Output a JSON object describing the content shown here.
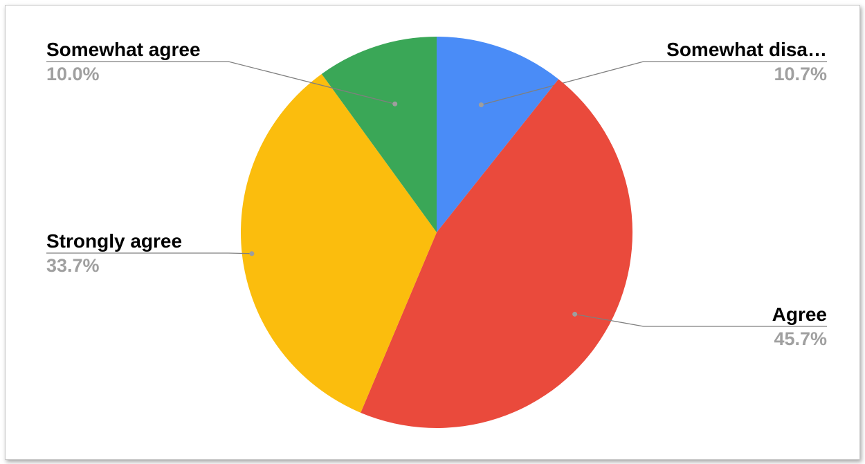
{
  "chart_data": {
    "type": "pie",
    "title": "",
    "slices": [
      {
        "label": "Somewhat disa…",
        "value": 10.7,
        "percent_label": "10.7%",
        "color": "#4a8cf7"
      },
      {
        "label": "Agree",
        "value": 45.7,
        "percent_label": "45.7%",
        "color": "#ea4a3c"
      },
      {
        "label": "Strongly agree",
        "value": 33.7,
        "percent_label": "33.7%",
        "color": "#fbbd0d"
      },
      {
        "label": "Somewhat agree",
        "value": 10.0,
        "percent_label": "10.0%",
        "color": "#3aa757"
      }
    ],
    "start_angle_deg": 0,
    "direction": "clockwise",
    "legend": "none"
  }
}
